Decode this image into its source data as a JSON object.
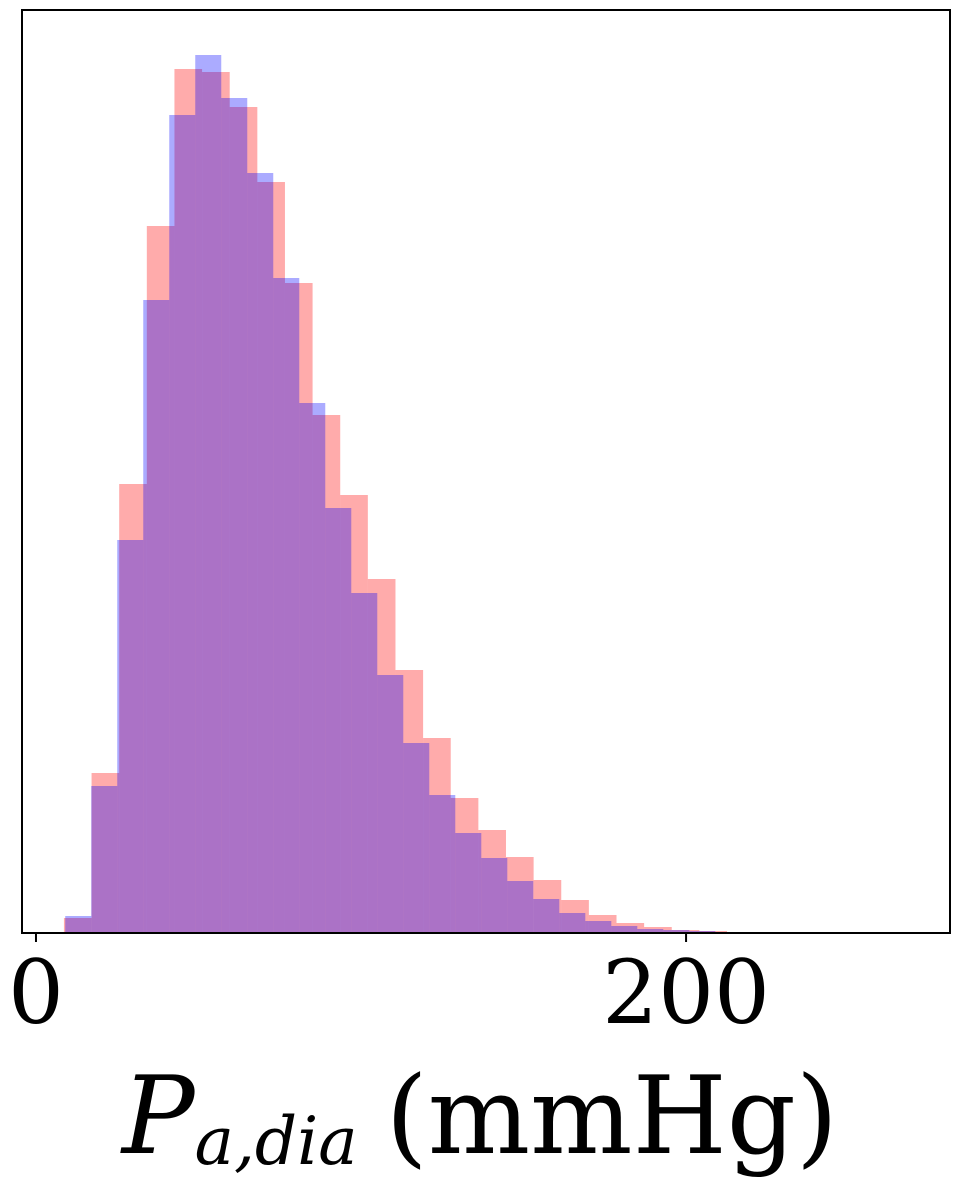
{
  "chart_data": {
    "type": "histogram",
    "xlabel": "P",
    "xlabel_subscript": "a,dia",
    "xlabel_unit": "(mmHg)",
    "xlim": [
      -4.3,
      281.2
    ],
    "xticks": [
      0,
      200
    ],
    "ylim": [
      0,
      923
    ],
    "series": [
      {
        "color": "rgba(255,0,0,0.33)",
        "bins": [
          8.6,
          17.1,
          25.6,
          34.1,
          42.6,
          51.1,
          59.6,
          68.1,
          76.6,
          85.1,
          93.6,
          102.1,
          110.6,
          119.1,
          127.6,
          136.1,
          144.6,
          153.1,
          161.6,
          170.1,
          178.6,
          187.1,
          195.6,
          204.1,
          212.6
        ],
        "values": [
          15,
          160,
          449,
          707,
          864,
          861,
          826,
          751,
          650,
          518,
          438,
          354,
          263,
          195,
          135,
          103,
          76,
          53,
          33,
          18,
          10,
          6,
          3,
          2
        ]
      },
      {
        "color": "rgba(0,0,255,0.33)",
        "bins": [
          9,
          17,
          25,
          33,
          41,
          49,
          57,
          65,
          73,
          81,
          89,
          97,
          105,
          113,
          121,
          129,
          137,
          145,
          153,
          161,
          169,
          177,
          185,
          193,
          201,
          209,
          217
        ],
        "values": [
          17,
          147,
          393,
          633,
          818,
          878,
          835,
          760,
          655,
          530,
          425,
          340,
          258,
          190,
          138,
          100,
          75,
          52,
          34,
          20,
          12,
          7,
          4,
          3,
          2,
          1
        ]
      }
    ]
  }
}
